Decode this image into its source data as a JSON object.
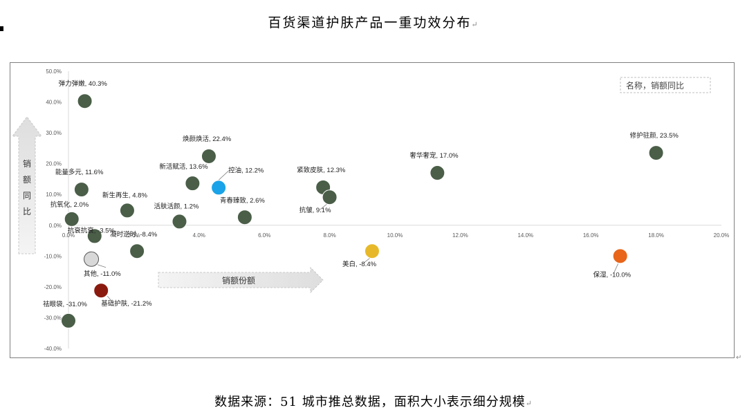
{
  "page": {
    "title": "百货渠道护肤产品一重功效分布",
    "source": "数据来源：51 城市推总数据，面积大小表示细分规模",
    "para_mark": "↵"
  },
  "chart_data": {
    "type": "scatter",
    "title": "",
    "xlabel": "销额份额",
    "ylabel": "销额同比",
    "legend": "名称，销额同比",
    "xlim": [
      0,
      0.2
    ],
    "ylim": [
      -0.4,
      0.5
    ],
    "x_ticks": [
      "0.0%",
      "2.0%",
      "4.0%",
      "6.0%",
      "8.0%",
      "10.0%",
      "12.0%",
      "14.0%",
      "16.0%",
      "18.0%",
      "20.0%"
    ],
    "y_ticks": [
      "50.0%",
      "40.0%",
      "30.0%",
      "20.0%",
      "10.0%",
      "0.0%",
      "-10.0%",
      "-20.0%",
      "-30.0%",
      "-40.0%"
    ],
    "colors": {
      "default": "#4a5e48",
      "highlight_blue": "#1aa3e8",
      "highlight_gold": "#e7b92a",
      "highlight_orange": "#e8651a",
      "highlight_grey": "#d8d8d8",
      "highlight_red": "#8b1a0e"
    },
    "points": [
      {
        "name": "弹力弹嫩",
        "label": "弹力弹嫩, 40.3%",
        "x": 0.005,
        "y": 0.403,
        "color": "#4a5e48"
      },
      {
        "name": "修护驻颜",
        "label": "修护驻颜, 23.5%",
        "x": 0.18,
        "y": 0.235,
        "color": "#4a5e48"
      },
      {
        "name": "焕颜焕活",
        "label": "焕颜焕活, 22.4%",
        "x": 0.043,
        "y": 0.224,
        "color": "#4a5e48"
      },
      {
        "name": "奢华奢宠",
        "label": "奢华奢宠, 17.0%",
        "x": 0.113,
        "y": 0.17,
        "color": "#4a5e48"
      },
      {
        "name": "新活赋活",
        "label": "新活赋活, 13.6%",
        "x": 0.038,
        "y": 0.136,
        "color": "#4a5e48"
      },
      {
        "name": "紧致皮肤",
        "label": "紧致皮肤, 12.3%",
        "x": 0.078,
        "y": 0.123,
        "color": "#4a5e48"
      },
      {
        "name": "控油",
        "label": "控油, 12.2%",
        "x": 0.046,
        "y": 0.122,
        "color": "#1aa3e8"
      },
      {
        "name": "能量多元",
        "label": "能量多元, 11.6%",
        "x": 0.004,
        "y": 0.116,
        "color": "#4a5e48"
      },
      {
        "name": "抗皱",
        "label": "抗皱, 9.1%",
        "x": 0.08,
        "y": 0.091,
        "color": "#4a5e48"
      },
      {
        "name": "新生再生",
        "label": "新生再生, 4.8%",
        "x": 0.018,
        "y": 0.048,
        "color": "#4a5e48"
      },
      {
        "name": "青春臻致",
        "label": "青春臻致, 2.6%",
        "x": 0.054,
        "y": 0.026,
        "color": "#4a5e48"
      },
      {
        "name": "抗氧化",
        "label": "抗氧化, 2.0%",
        "x": 0.001,
        "y": 0.02,
        "color": "#4a5e48"
      },
      {
        "name": "活肤活颜",
        "label": "活肤活颜, 1.2%",
        "x": 0.034,
        "y": 0.012,
        "color": "#4a5e48"
      },
      {
        "name": "抗衰抗衰",
        "label": "抗衰抗衰, -3.5%",
        "x": 0.008,
        "y": -0.035,
        "color": "#4a5e48"
      },
      {
        "name": "凝时逆时",
        "label": "凝时逆时, -8.4%",
        "x": 0.021,
        "y": -0.084,
        "color": "#4a5e48"
      },
      {
        "name": "美白",
        "label": "美白, -8.4%",
        "x": 0.093,
        "y": -0.084,
        "color": "#e7b92a"
      },
      {
        "name": "保湿",
        "label": "保湿, -10.0%",
        "x": 0.169,
        "y": -0.1,
        "color": "#e8651a"
      },
      {
        "name": "其他",
        "label": "其他, -11.0%",
        "x": 0.007,
        "y": -0.11,
        "color": "#d8d8d8"
      },
      {
        "name": "基础护肤",
        "label": "基础护肤, -21.2%",
        "x": 0.01,
        "y": -0.212,
        "color": "#8b1a0e"
      },
      {
        "name": "祛眼袋",
        "label": "祛眼袋, -31.0%",
        "x": 0.0,
        "y": -0.31,
        "color": "#4a5e48"
      }
    ]
  }
}
